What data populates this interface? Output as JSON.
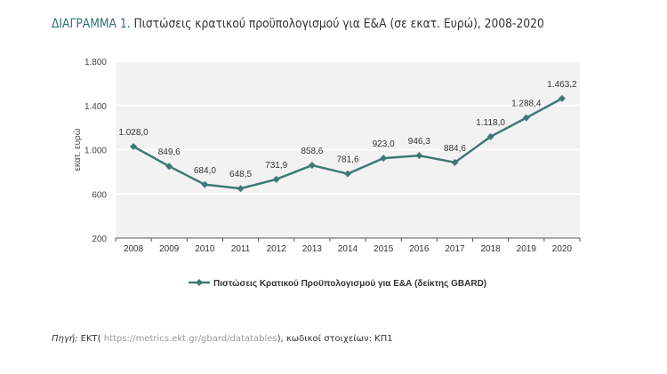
{
  "title": {
    "lead": "ΔΙΑΓΡΑΜΜΑ 1.",
    "text": "Πιστώσεις κρατικού προϋπολογισμού για Ε&Α (σε εκατ. Ευρώ), 2008-2020"
  },
  "source": {
    "label": "Πηγή:",
    "org": "ΕΚΤ(",
    "url": "https://metrics.ekt.gr/gbard/datatables",
    "rest": "), κωδικοί στοιχείων: ΚΠ1"
  },
  "colors": {
    "series": "#3d7a74",
    "title_accent": "#2e6f6b",
    "plot_bg": "#f2f2f2"
  },
  "chart_data": {
    "type": "line",
    "title": "",
    "xlabel": "",
    "ylabel": "εκατ. ευρώ",
    "ylim": [
      200,
      1800
    ],
    "yticks": [
      200,
      600,
      1000,
      1400,
      1800
    ],
    "ytick_labels": [
      "200",
      "600",
      "1.000",
      "1.400",
      "1.800"
    ],
    "grid": true,
    "legend": "bottom",
    "categories": [
      "2008",
      "2009",
      "2010",
      "2011",
      "2012",
      "2013",
      "2014",
      "2015",
      "2016",
      "2017",
      "2018",
      "2019",
      "2020"
    ],
    "series": [
      {
        "name": "Πιστώσεις Κρατικού Προϋπολογισμού για Ε&Α (δείκτης GBARD)",
        "values": [
          1028.0,
          849.6,
          684.0,
          648.5,
          731.9,
          858.6,
          781.6,
          923.0,
          946.3,
          884.6,
          1118.0,
          1288.4,
          1463.2
        ],
        "labels": [
          "1.028,0",
          "849,6",
          "684,0",
          "648,5",
          "731,9",
          "858,6",
          "781,6",
          "923,0",
          "946,3",
          "884,6",
          "1.118,0",
          "1.288,4",
          "1.463,2"
        ]
      }
    ]
  }
}
